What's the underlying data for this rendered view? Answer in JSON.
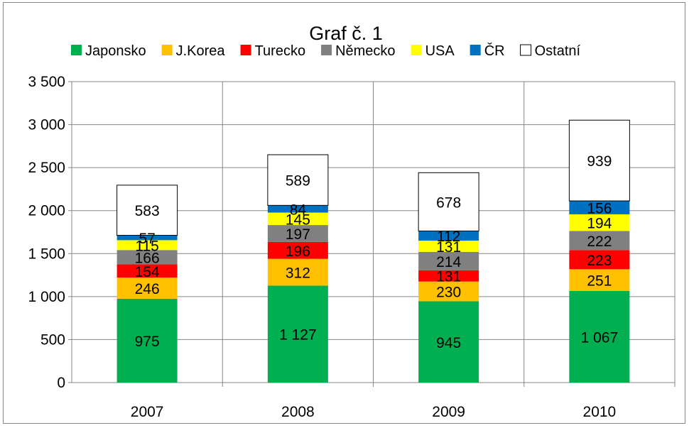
{
  "chart_data": {
    "type": "bar",
    "stacked": true,
    "title": "Graf č. 1",
    "categories": [
      "2007",
      "2008",
      "2009",
      "2010"
    ],
    "ylim": [
      0,
      3500
    ],
    "yticks": [
      0,
      500,
      1000,
      1500,
      2000,
      2500,
      3000,
      3500
    ],
    "ytick_labels": [
      "0",
      "500",
      "1 000",
      "1 500",
      "2 000",
      "2 500",
      "3 000",
      "3 500"
    ],
    "grid": true,
    "legend_position": "top",
    "series": [
      {
        "name": "Japonsko",
        "color": "#00B050",
        "values": [
          975,
          1127,
          945,
          1067
        ],
        "labels": [
          "975",
          "1 127",
          "945",
          "1 067"
        ]
      },
      {
        "name": "J.Korea",
        "color": "#FFC000",
        "values": [
          246,
          312,
          230,
          251
        ],
        "labels": [
          "246",
          "312",
          "230",
          "251"
        ]
      },
      {
        "name": "Turecko",
        "color": "#FF0000",
        "values": [
          154,
          196,
          131,
          223
        ],
        "labels": [
          "154",
          "196",
          "131",
          "223"
        ]
      },
      {
        "name": "Německo",
        "color": "#808080",
        "values": [
          166,
          197,
          214,
          222
        ],
        "labels": [
          "166",
          "197",
          "214",
          "222"
        ]
      },
      {
        "name": "USA",
        "color": "#FFFF00",
        "values": [
          115,
          145,
          131,
          194
        ],
        "labels": [
          "115",
          "145",
          "131",
          "194"
        ]
      },
      {
        "name": "ČR",
        "color": "#0070C0",
        "values": [
          57,
          84,
          112,
          156
        ],
        "labels": [
          "57",
          "84",
          "112",
          "156"
        ]
      },
      {
        "name": "Ostatní",
        "color": "#FFFFFF",
        "values": [
          583,
          589,
          678,
          939
        ],
        "labels": [
          "583",
          "589",
          "678",
          "939"
        ]
      }
    ]
  }
}
